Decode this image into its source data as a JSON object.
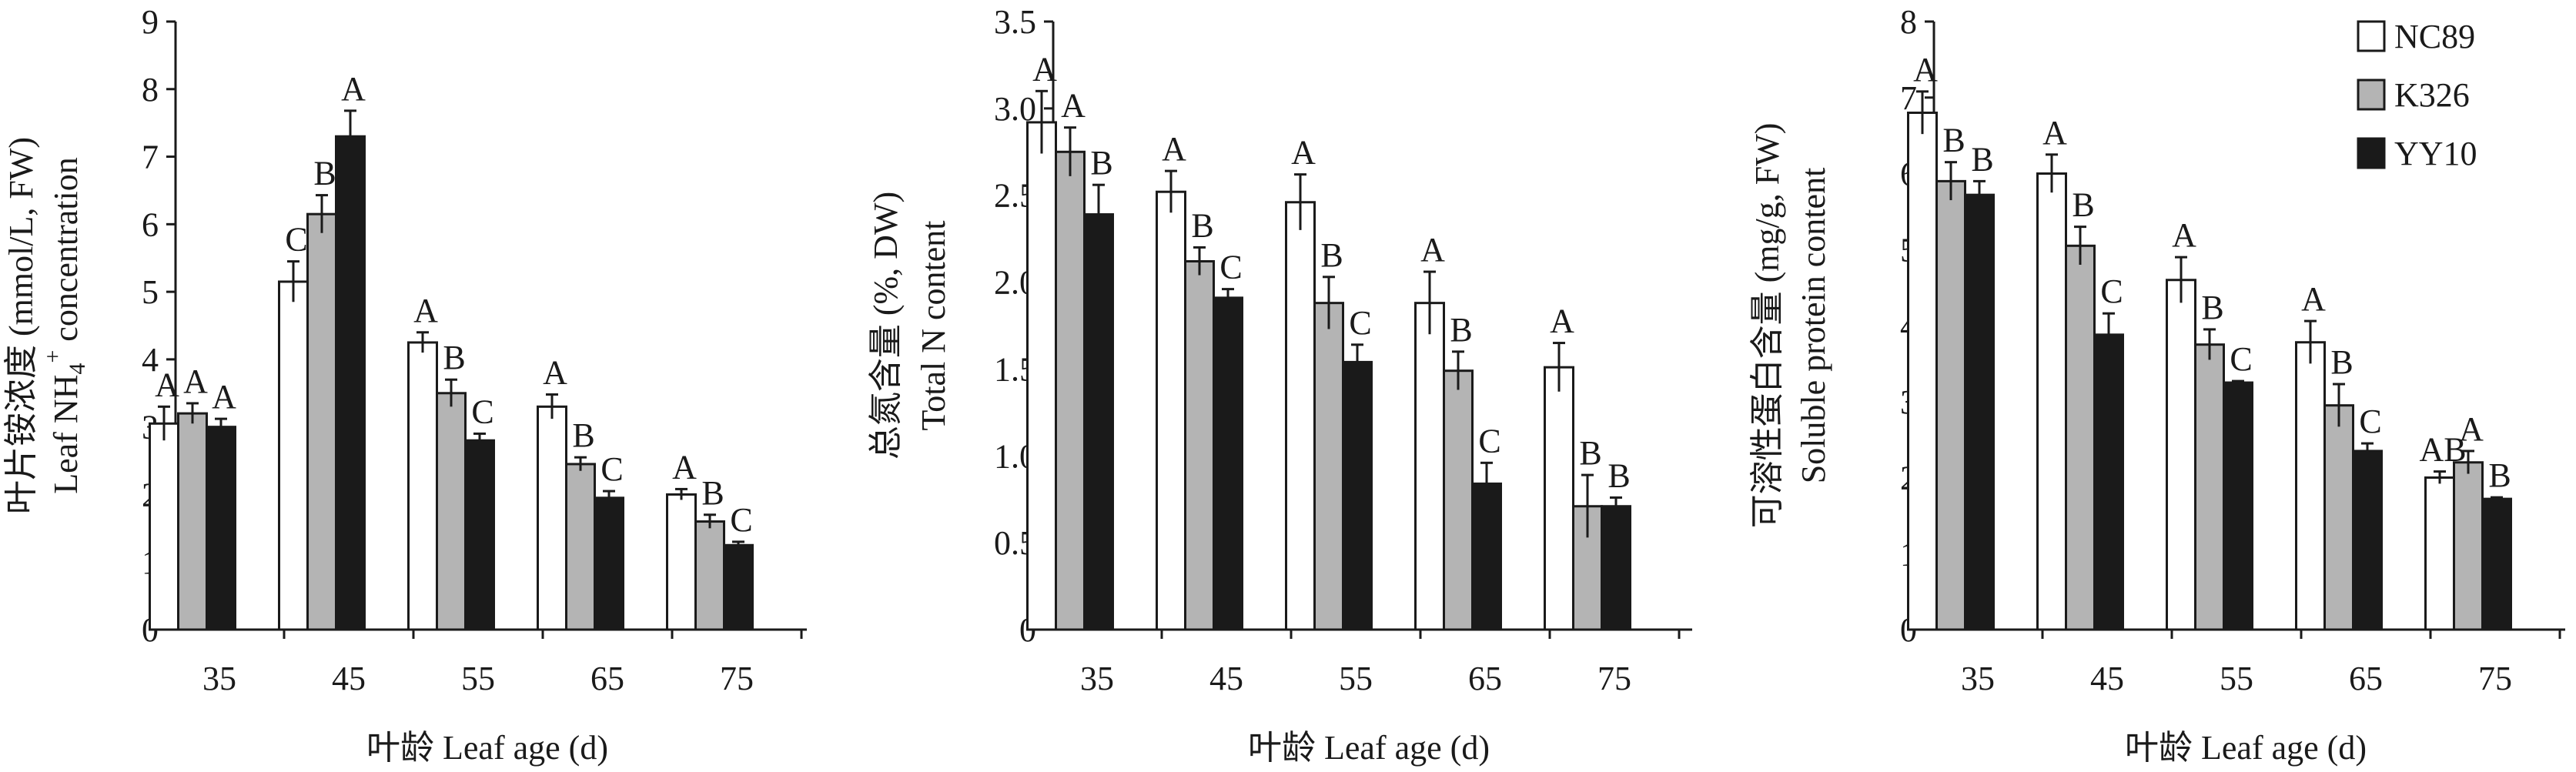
{
  "legend": [
    {
      "name": "NC89",
      "color": "#ffffff"
    },
    {
      "name": "K326",
      "color": "#b4b4b4"
    },
    {
      "name": "YY10",
      "color": "#1a1a1a"
    }
  ],
  "chart_data": [
    {
      "type": "bar",
      "title": "",
      "xlabel": "叶龄 Leaf age (d)",
      "ylabel_cn": "叶片铵浓度 (mmol/L, FW)",
      "ylabel_en_prefix": "Leaf NH",
      "ylabel_en_sub": "4",
      "ylabel_en_sup": "+",
      "ylabel_en_suffix": " concentration",
      "ylim": [
        0,
        9
      ],
      "yticks": [
        "0",
        "1",
        "2",
        "3",
        "4",
        "5",
        "6",
        "7",
        "8",
        "9"
      ],
      "ytick_values": [
        0,
        1,
        2,
        3,
        4,
        5,
        6,
        7,
        8,
        9
      ],
      "categories": [
        "35",
        "45",
        "55",
        "65",
        "75"
      ],
      "series": [
        {
          "name": "NC89",
          "values": [
            3.05,
            5.15,
            4.25,
            3.3,
            2.0
          ],
          "errors": [
            0.25,
            0.3,
            0.15,
            0.18,
            0.08
          ],
          "letters": [
            "A",
            "C",
            "A",
            "A",
            "A"
          ]
        },
        {
          "name": "K326",
          "values": [
            3.2,
            6.15,
            3.5,
            2.45,
            1.6
          ],
          "errors": [
            0.15,
            0.28,
            0.2,
            0.1,
            0.1
          ],
          "letters": [
            "A",
            "B",
            "B",
            "B",
            "B"
          ]
        },
        {
          "name": "YY10",
          "values": [
            3.0,
            7.3,
            2.8,
            1.95,
            1.25
          ],
          "errors": [
            0.12,
            0.38,
            0.1,
            0.1,
            0.05
          ],
          "letters": [
            "A",
            "A",
            "C",
            "C",
            "C"
          ]
        }
      ]
    },
    {
      "type": "bar",
      "title": "",
      "xlabel": "叶龄 Leaf age (d)",
      "ylabel_cn": "总氮含量 (%, DW)",
      "ylabel_en": "Total N content",
      "ylim": [
        0,
        3.5
      ],
      "yticks": [
        "0",
        "0.5",
        "1.0",
        "1.5",
        "2.0",
        "2.5",
        "3.0",
        "3.5"
      ],
      "ytick_values": [
        0,
        0.5,
        1.0,
        1.5,
        2.0,
        2.5,
        3.0,
        3.5
      ],
      "categories": [
        "35",
        "45",
        "55",
        "65",
        "75"
      ],
      "series": [
        {
          "name": "NC89",
          "values": [
            2.92,
            2.52,
            2.46,
            1.88,
            1.51
          ],
          "errors": [
            0.18,
            0.12,
            0.16,
            0.18,
            0.14
          ],
          "letters": [
            "A",
            "A",
            "A",
            "A",
            "A"
          ]
        },
        {
          "name": "K326",
          "values": [
            2.75,
            2.12,
            1.88,
            1.49,
            0.71
          ],
          "errors": [
            0.14,
            0.08,
            0.15,
            0.11,
            0.18
          ],
          "letters": [
            "A",
            "B",
            "B",
            "B",
            "B"
          ]
        },
        {
          "name": "YY10",
          "values": [
            2.39,
            1.91,
            1.54,
            0.84,
            0.71
          ],
          "errors": [
            0.17,
            0.05,
            0.1,
            0.12,
            0.05
          ],
          "letters": [
            "B",
            "C",
            "C",
            "C",
            "B"
          ]
        }
      ]
    },
    {
      "type": "bar",
      "title": "",
      "xlabel": "叶龄 Leaf age (d)",
      "ylabel_cn": "可溶性蛋白含量 (mg/g, FW)",
      "ylabel_en": "Soluble protein content",
      "ylim": [
        0,
        8
      ],
      "yticks": [
        "0",
        "1",
        "2",
        "3",
        "4",
        "5",
        "6",
        "7",
        "8"
      ],
      "ytick_values": [
        0,
        1,
        2,
        3,
        4,
        5,
        6,
        7,
        8
      ],
      "categories": [
        "35",
        "45",
        "55",
        "65",
        "75"
      ],
      "series": [
        {
          "name": "NC89",
          "values": [
            6.8,
            6.0,
            4.6,
            3.78,
            2.0
          ],
          "errors": [
            0.28,
            0.25,
            0.3,
            0.28,
            0.08
          ],
          "letters": [
            "A",
            "A",
            "A",
            "A",
            "AB"
          ]
        },
        {
          "name": "K326",
          "values": [
            5.9,
            5.05,
            3.75,
            2.95,
            2.2
          ],
          "errors": [
            0.25,
            0.25,
            0.2,
            0.28,
            0.15
          ],
          "letters": [
            "B",
            "B",
            "B",
            "B",
            "A"
          ]
        },
        {
          "name": "YY10",
          "values": [
            5.72,
            3.88,
            3.25,
            2.35,
            1.72
          ],
          "errors": [
            0.18,
            0.28,
            0.02,
            0.1,
            0.02
          ],
          "letters": [
            "B",
            "C",
            "C",
            "C",
            "B"
          ]
        }
      ]
    }
  ]
}
